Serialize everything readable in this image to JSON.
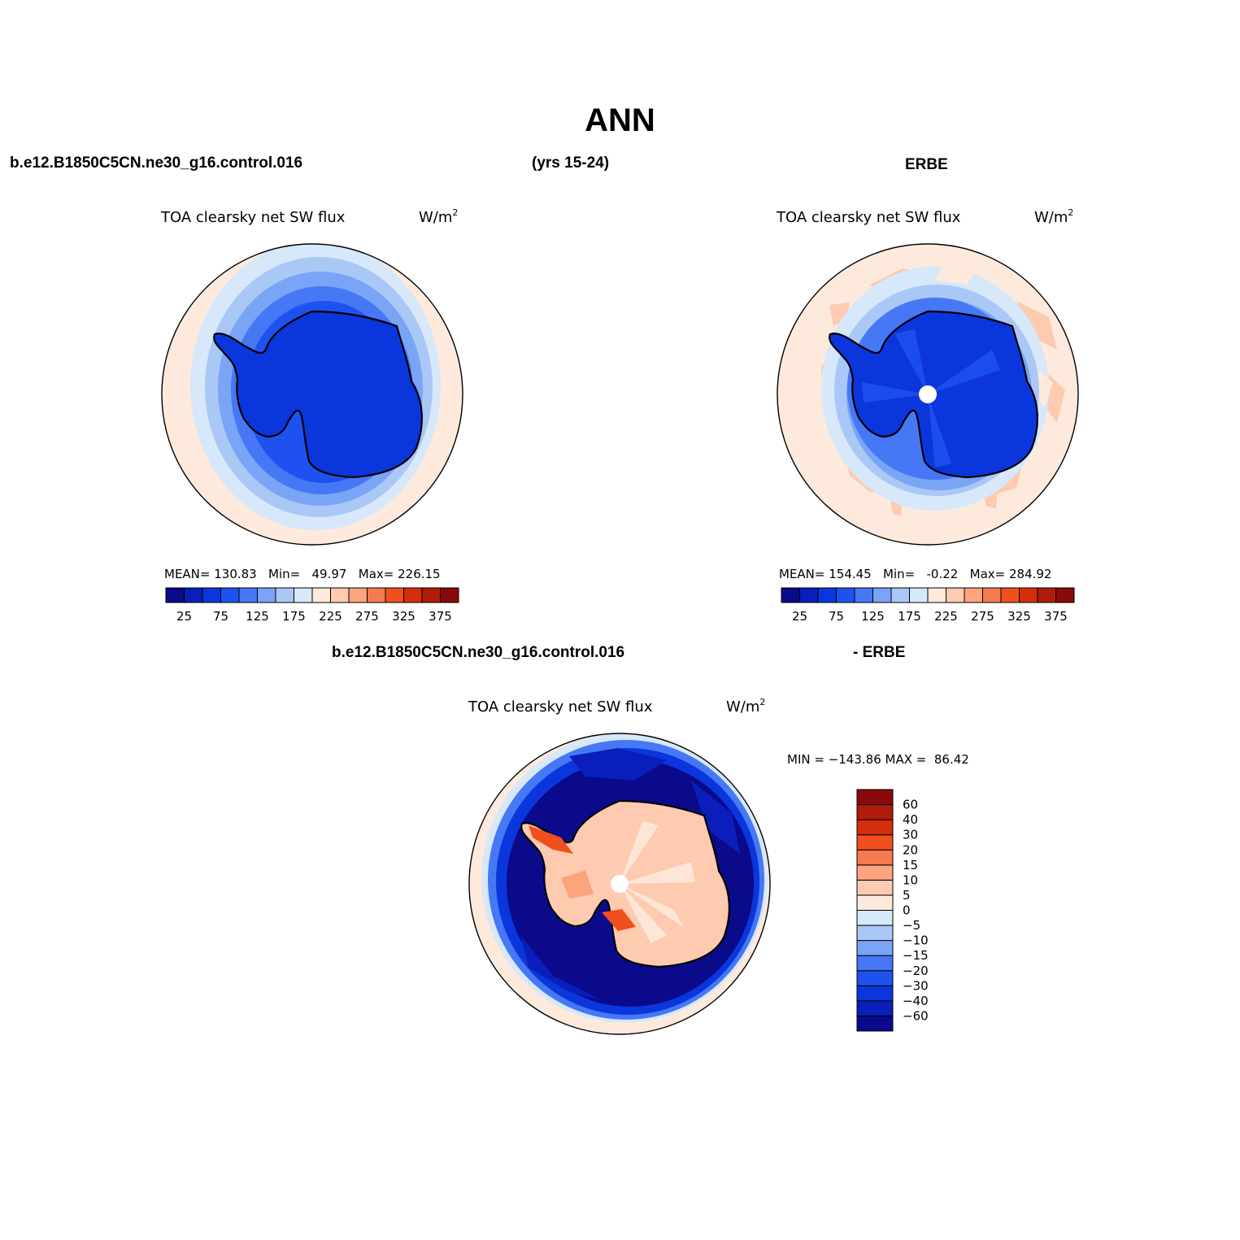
{
  "title": "ANN",
  "header": {
    "case_name": "b.e12.B1850C5CN.ne30_g16.control.016",
    "years": "(yrs 15-24)",
    "obs_name": "ERBE"
  },
  "diff_header": {
    "case_name": "b.e12.B1850C5CN.ne30_g16.control.016",
    "obs_name": "- ERBE"
  },
  "colors": {
    "seq": [
      "#0a0a8a",
      "#0a1ebc",
      "#0a36dc",
      "#1e52f0",
      "#4678f6",
      "#7aa4f6",
      "#aac8f6",
      "#d6e8fa",
      "#feeadc",
      "#fecab0",
      "#fca47e",
      "#f67c50",
      "#f0501e",
      "#d42e0a",
      "#b01c0a",
      "#880a0a"
    ],
    "div": [
      "#0a0a8a",
      "#0a1ebc",
      "#0a36dc",
      "#1e52f0",
      "#4678f6",
      "#7aa4f6",
      "#aac8f6",
      "#d6e8fa",
      "#feeadc",
      "#fecab0",
      "#fca47e",
      "#f67c50",
      "#f0501e",
      "#d42e0a",
      "#b01c0a",
      "#880a0a"
    ]
  },
  "panels": [
    {
      "id": "model",
      "field": "TOA clearsky net SW flux",
      "units_base": "W/m",
      "units_exp": "2",
      "stats": "MEAN= 130.83   Min=   49.97   Max= 226.15",
      "bar_labels": [
        "25",
        "75",
        "125",
        "175",
        "225",
        "275",
        "325",
        "375"
      ],
      "pole_marker": false
    },
    {
      "id": "obs",
      "field": "TOA clearsky net SW flux",
      "units_base": "W/m",
      "units_exp": "2",
      "stats": "MEAN= 154.45   Min=   -0.22   Max= 284.92",
      "bar_labels": [
        "25",
        "75",
        "125",
        "175",
        "225",
        "275",
        "325",
        "375"
      ],
      "pole_marker": true
    }
  ],
  "diff_panel": {
    "field": "TOA clearsky net SW flux",
    "units_base": "W/m",
    "units_exp": "2",
    "stats": "MIN = −143.86 MAX =  86.42",
    "bar_labels": [
      "60",
      "40",
      "30",
      "20",
      "15",
      "10",
      "5",
      "0",
      "−5",
      "−10",
      "−15",
      "−20",
      "−30",
      "−40",
      "−60"
    ]
  }
}
